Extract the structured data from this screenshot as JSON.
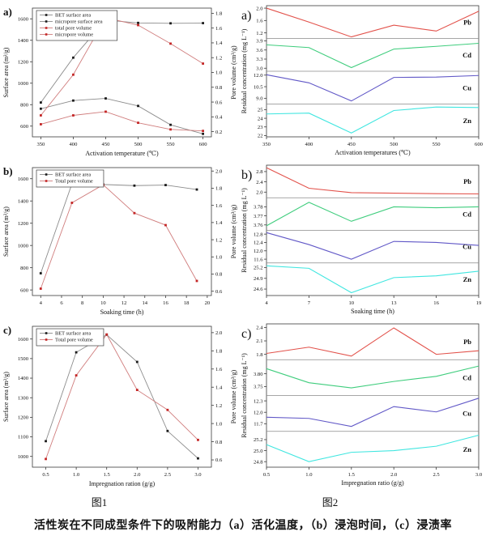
{
  "figure": {
    "figure1_label": "图1",
    "figure2_label": "图2",
    "caption": "活性炭在不同成型条件下的吸附能力（a）活化温度，（b）浸泡时间，（c）浸渍率"
  },
  "colors": {
    "black_marker": "#1a1a1a",
    "black_line": "#8c8c8c",
    "red_marker": "#c42525",
    "red_line": "#d07d7d",
    "pb": "#e2514a",
    "cd": "#3fcd7d",
    "cu": "#6158c7",
    "zn": "#40e6e0",
    "axis": "#3a3a3a",
    "divider": "#8a8a8a"
  },
  "chart_data": [
    {
      "svg_id": "fig1-a",
      "type": "line",
      "style": "dual",
      "panel_label": "a)",
      "xlabel": "Activation temperature (℃)",
      "x_ticks": [
        "350",
        "400",
        "450",
        "500",
        "550",
        "600"
      ],
      "x_range": [
        337,
        613
      ],
      "y_left": {
        "label": "Surface area (m²/g)",
        "ticks": [
          "600",
          "800",
          "1000",
          "1200",
          "1400",
          "1600"
        ],
        "range": [
          500,
          1700
        ]
      },
      "y_right": {
        "label": "Pore volume (cm³/g)",
        "ticks": [
          "0.2",
          "0.4",
          "0.6",
          "0.8",
          "1.0",
          "1.2",
          "1.4",
          "1.6",
          "1.8"
        ],
        "range": [
          0.13,
          1.87
        ]
      },
      "series": [
        {
          "name": "BET surface area",
          "axis": "left",
          "line_color": "#8c8c8c",
          "marker_color": "#1a1a1a",
          "x": [
            350,
            400,
            450,
            500,
            550,
            600
          ],
          "y": [
            820,
            1238,
            1588,
            1562,
            1558,
            1560
          ]
        },
        {
          "name": "micropore surface area",
          "axis": "left",
          "line_color": "#8c8c8c",
          "marker_color": "#1a1a1a",
          "x": [
            350,
            400,
            450,
            500,
            550,
            600
          ],
          "y": [
            762,
            838,
            858,
            788,
            612,
            528
          ]
        },
        {
          "name": "total pore volume",
          "axis": "right",
          "line_color": "#d07d7d",
          "marker_color": "#c42525",
          "x": [
            350,
            400,
            450,
            500,
            550,
            600
          ],
          "y": [
            0.42,
            0.97,
            1.74,
            1.64,
            1.39,
            1.12
          ]
        },
        {
          "name": "micropore volume",
          "axis": "right",
          "line_color": "#d07d7d",
          "marker_color": "#c42525",
          "x": [
            350,
            400,
            450,
            500,
            550,
            600
          ],
          "y": [
            0.3,
            0.42,
            0.47,
            0.32,
            0.23,
            0.21
          ]
        }
      ]
    },
    {
      "svg_id": "fig1-b",
      "type": "line",
      "style": "dual",
      "panel_label": "b)",
      "xlabel": "Soaking time (h)",
      "x_ticks": [
        "4",
        "6",
        "8",
        "10",
        "12",
        "14",
        "16",
        "18",
        "20"
      ],
      "x_range": [
        3.2,
        20.4
      ],
      "y_left": {
        "label": "Surface area (m²/g)",
        "ticks": [
          "600",
          "800",
          "1000",
          "1200",
          "1400",
          "1600"
        ],
        "range": [
          550,
          1700
        ]
      },
      "y_right": {
        "label": "Pore volume (cm³/g)",
        "ticks": [
          "0.6",
          "0.8",
          "1.0",
          "1.2",
          "1.4",
          "1.6",
          "1.8",
          "2.0"
        ],
        "range": [
          0.55,
          2.04
        ]
      },
      "series": [
        {
          "name": "BET surface area",
          "axis": "left",
          "line_color": "#8c8c8c",
          "marker_color": "#1a1a1a",
          "x": [
            4,
            7,
            10,
            13,
            16,
            19
          ],
          "y": [
            750,
            1555,
            1548,
            1538,
            1543,
            1503
          ]
        },
        {
          "name": "Total pore volume",
          "axis": "right",
          "line_color": "#d07d7d",
          "marker_color": "#c42525",
          "x": [
            4,
            7,
            10,
            13,
            16,
            19
          ],
          "y": [
            0.63,
            1.63,
            1.84,
            1.51,
            1.37,
            0.72
          ]
        }
      ]
    },
    {
      "svg_id": "fig1-c",
      "type": "line",
      "style": "dual",
      "panel_label": "c)",
      "xlabel": "Impregnation ration (g/g)",
      "x_ticks": [
        "0.5",
        "1.0",
        "1.5",
        "2.0",
        "2.5",
        "3.0"
      ],
      "x_range": [
        0.28,
        3.22
      ],
      "y_left": {
        "label": "Surface area (m²/g)",
        "ticks": [
          "1000",
          "1100",
          "1200",
          "1300",
          "1400",
          "1500",
          "1600"
        ],
        "range": [
          945,
          1665
        ]
      },
      "y_right": {
        "label": "Pore volume (cm³/g)",
        "ticks": [
          "0.6",
          "0.8",
          "1.0",
          "1.2",
          "1.4",
          "1.6",
          "1.8",
          "2.0"
        ],
        "range": [
          0.52,
          2.07
        ]
      },
      "series": [
        {
          "name": "BET surface area",
          "axis": "left",
          "line_color": "#8c8c8c",
          "marker_color": "#1a1a1a",
          "x": [
            0.5,
            1.0,
            1.5,
            2.0,
            2.5,
            3.0
          ],
          "y": [
            1078,
            1532,
            1622,
            1483,
            1130,
            990
          ]
        },
        {
          "name": "Total pore volume",
          "axis": "right",
          "line_color": "#d07d7d",
          "marker_color": "#c42525",
          "x": [
            0.5,
            1.0,
            1.5,
            2.0,
            2.5,
            3.0
          ],
          "y": [
            0.61,
            1.53,
            1.98,
            1.37,
            1.15,
            0.82
          ]
        }
      ]
    },
    {
      "svg_id": "fig2-a",
      "type": "line",
      "style": "stacked",
      "panel_label": "a)",
      "xlabel": "Activation temperatures (℃)",
      "ylabel": "Residual concentration (mg L⁻¹)",
      "x": [
        350,
        400,
        450,
        500,
        550,
        600
      ],
      "x_ticks": [
        "350",
        "400",
        "450",
        "500",
        "550",
        "600"
      ],
      "x_range": [
        350,
        600
      ],
      "subpanels": [
        {
          "name": "Pb",
          "color": "#e2514a",
          "ticks": [
            "2.0",
            "1.6",
            "1.2"
          ],
          "range": [
            1.02,
            2.08
          ],
          "values": [
            2.0,
            1.55,
            1.07,
            1.45,
            1.26,
            1.9
          ]
        },
        {
          "name": "Cd",
          "color": "#3fcd7d",
          "ticks": [
            "3.9",
            "3.6",
            "3.3",
            "3.0"
          ],
          "range": [
            2.9,
            3.98
          ],
          "values": [
            3.77,
            3.68,
            3.02,
            3.63,
            3.72,
            3.82
          ]
        },
        {
          "name": "Cu",
          "color": "#6158c7",
          "ticks": [
            "12.0",
            "10.5",
            "9.0"
          ],
          "range": [
            8.25,
            12.5
          ],
          "values": [
            12.05,
            11.0,
            8.65,
            11.7,
            11.75,
            11.95
          ]
        },
        {
          "name": "Zn",
          "color": "#40e6e0",
          "ticks": [
            "25",
            "24",
            "23",
            "22"
          ],
          "range": [
            21.85,
            25.65
          ],
          "values": [
            24.5,
            24.6,
            22.3,
            24.9,
            25.3,
            25.25
          ]
        }
      ]
    },
    {
      "svg_id": "fig2-b",
      "type": "line",
      "style": "stacked",
      "panel_label": "b)",
      "xlabel": "Soaking time (h)",
      "ylabel": "Residual concentration (mg L⁻¹)",
      "x": [
        4,
        7,
        10,
        13,
        16,
        19
      ],
      "x_ticks": [
        "4",
        "7",
        "10",
        "13",
        "16",
        "19"
      ],
      "x_range": [
        4,
        19
      ],
      "subpanels": [
        {
          "name": "Pb",
          "color": "#e2514a",
          "ticks": [
            "2.8",
            "2.4",
            "2.0"
          ],
          "range": [
            1.78,
            3.05
          ],
          "values": [
            2.95,
            2.15,
            1.98,
            1.96,
            1.94,
            1.93
          ]
        },
        {
          "name": "Cd",
          "color": "#3fcd7d",
          "ticks": [
            "3.78",
            "3.77",
            "3.76"
          ],
          "range": [
            3.754,
            3.79
          ],
          "values": [
            3.759,
            3.785,
            3.764,
            3.78,
            3.779,
            3.78
          ]
        },
        {
          "name": "Cu",
          "color": "#6158c7",
          "ticks": [
            "12.8",
            "12.4",
            "12.0",
            "11.6"
          ],
          "range": [
            11.42,
            12.98
          ],
          "values": [
            12.87,
            12.3,
            11.6,
            12.45,
            12.4,
            12.26
          ]
        },
        {
          "name": "Zn",
          "color": "#40e6e0",
          "ticks": [
            "25.2",
            "24.9",
            "24.6"
          ],
          "range": [
            24.42,
            25.33
          ],
          "values": [
            25.25,
            25.18,
            24.5,
            24.92,
            24.97,
            25.1
          ]
        }
      ]
    },
    {
      "svg_id": "fig2-c",
      "type": "line",
      "style": "stacked",
      "panel_label": "c)",
      "xlabel": "Impregnation ratio (g/g)",
      "ylabel": "Residual concentration (mg L⁻¹)",
      "x": [
        0.5,
        1.0,
        1.5,
        2.0,
        2.5,
        3.0
      ],
      "x_ticks": [
        "0.5",
        "1.0",
        "1.5",
        "2.0",
        "2.5",
        "3.0"
      ],
      "x_range": [
        0.5,
        3.0
      ],
      "subpanels": [
        {
          "name": "Pb",
          "color": "#e2514a",
          "ticks": [
            "2.4",
            "2.1",
            "1.8"
          ],
          "range": [
            1.68,
            2.48
          ],
          "values": [
            1.82,
            1.96,
            1.76,
            2.39,
            1.8,
            1.88
          ]
        },
        {
          "name": "Cd",
          "color": "#3fcd7d",
          "ticks": [
            "3.80",
            "3.75"
          ],
          "range": [
            3.715,
            3.855
          ],
          "values": [
            3.82,
            3.765,
            3.745,
            3.77,
            3.79,
            3.83
          ]
        },
        {
          "name": "Cu",
          "color": "#6158c7",
          "ticks": [
            "12.3",
            "12.0",
            "11.7"
          ],
          "range": [
            11.5,
            12.44
          ],
          "values": [
            11.87,
            11.84,
            11.63,
            12.15,
            12.01,
            12.37
          ]
        },
        {
          "name": "Zn",
          "color": "#40e6e0",
          "ticks": [
            "25.2",
            "25.0",
            "24.8"
          ],
          "range": [
            24.7,
            25.35
          ],
          "values": [
            25.11,
            24.8,
            24.97,
            25.0,
            25.08,
            25.28
          ]
        }
      ]
    }
  ]
}
